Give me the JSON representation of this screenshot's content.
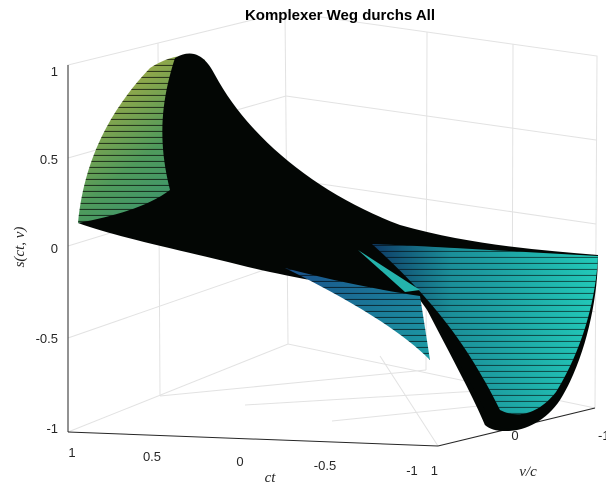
{
  "chart_data": {
    "type": "surface",
    "title": "Komplexer Weg durchs All",
    "xlabel": "ct",
    "ylabel": "v/c",
    "zlabel": "s(ct, v)",
    "x_ticks": [
      "1",
      "0.5",
      "0",
      "-0.5",
      "-1"
    ],
    "y_ticks": [
      "1",
      "0",
      "-1"
    ],
    "z_ticks": [
      "1",
      "0.5",
      "0",
      "-0.5",
      "-1"
    ],
    "xlim": [
      -1,
      1
    ],
    "ylim": [
      -1,
      1
    ],
    "zlim": [
      -1,
      1
    ],
    "grid": true,
    "colormap": [
      "#0b0c3a",
      "#2a6fb0",
      "#23c8b0",
      "#c9b33a"
    ]
  }
}
